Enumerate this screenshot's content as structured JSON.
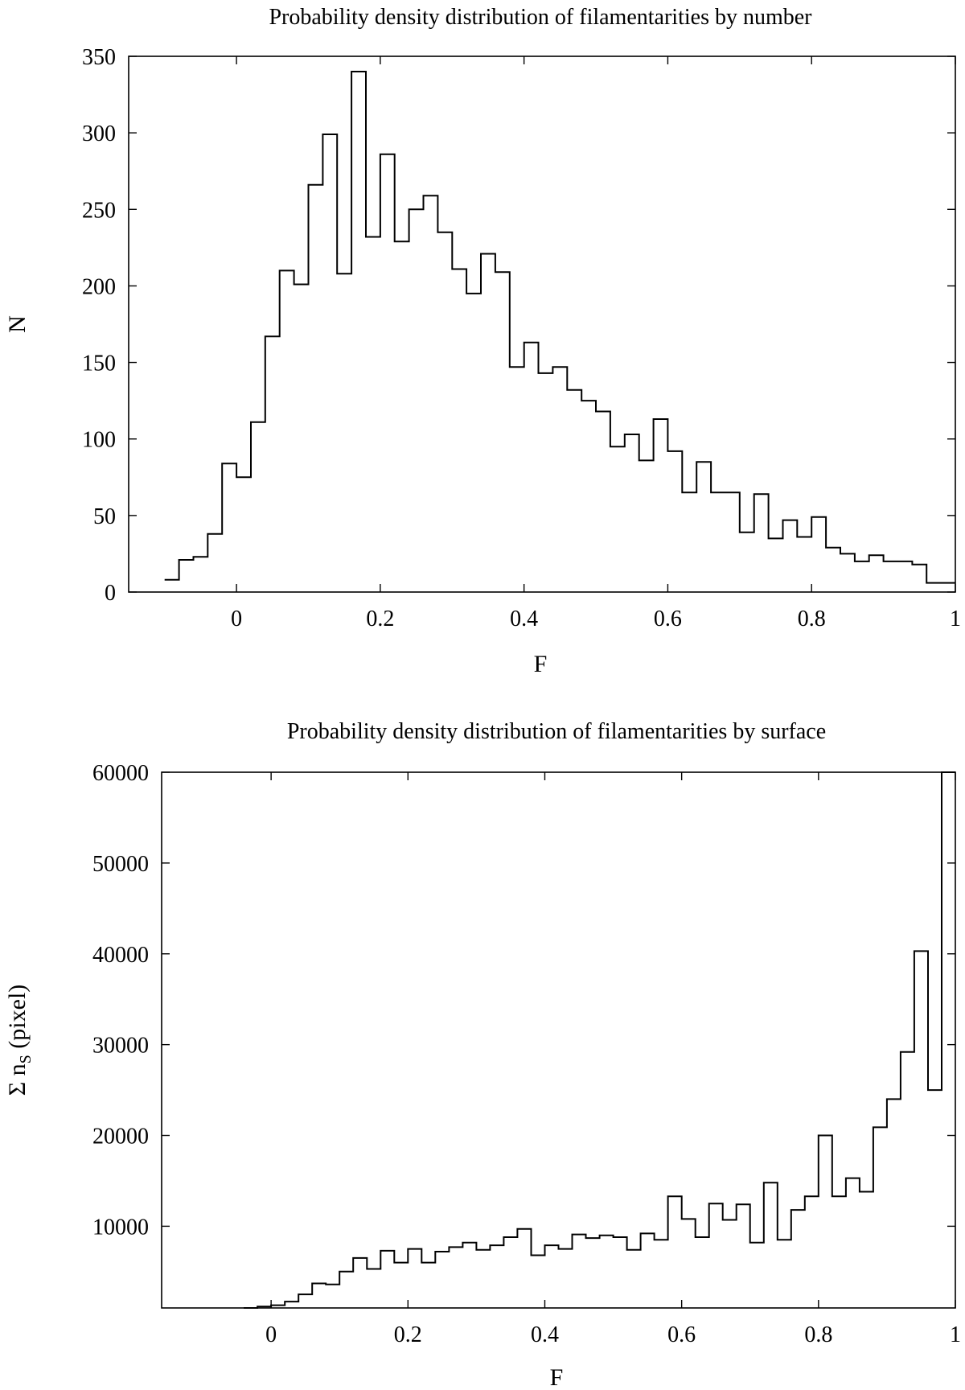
{
  "chart_data": [
    {
      "type": "histogram",
      "title": "Probability density distribution of filamentarities by number",
      "xlabel": "F",
      "ylabel": "N",
      "xlim": [
        -0.15,
        1.0
      ],
      "ylim": [
        0,
        350
      ],
      "x_ticks": [
        0,
        0.2,
        0.4,
        0.6,
        0.8,
        1
      ],
      "x_tick_labels": [
        "0",
        "0.2",
        "0.4",
        "0.6",
        "0.8",
        "1"
      ],
      "y_ticks": [
        0,
        50,
        100,
        150,
        200,
        250,
        300,
        350
      ],
      "y_tick_labels": [
        "0",
        "50",
        "100",
        "150",
        "200",
        "250",
        "300",
        "350"
      ],
      "bin_start": -0.1,
      "bin_width": 0.02,
      "values": [
        8,
        21,
        23,
        38,
        84,
        75,
        111,
        167,
        210,
        201,
        266,
        299,
        208,
        340,
        232,
        286,
        229,
        250,
        259,
        235,
        211,
        195,
        221,
        209,
        147,
        163,
        143,
        147,
        132,
        125,
        118,
        95,
        103,
        86,
        113,
        92,
        65,
        85,
        65,
        65,
        39,
        64,
        35,
        47,
        36,
        49,
        29,
        25,
        20,
        24,
        20,
        20,
        18,
        6,
        6
      ],
      "grid": false,
      "legend": "none"
    },
    {
      "type": "histogram",
      "title": "Probability density distribution of filamentarities by surface",
      "xlabel": "F",
      "ylabel_main": "Σ n",
      "ylabel_sub": "S",
      "ylabel_tail": " (pixel)",
      "xlim": [
        -0.16,
        1.0
      ],
      "ylim": [
        1000,
        60000
      ],
      "x_ticks": [
        0,
        0.2,
        0.4,
        0.6,
        0.8,
        1
      ],
      "x_tick_labels": [
        "0",
        "0.2",
        "0.4",
        "0.6",
        "0.8",
        "1"
      ],
      "y_ticks": [
        10000,
        20000,
        30000,
        40000,
        50000,
        60000
      ],
      "y_tick_labels": [
        "10000",
        "20000",
        "30000",
        "40000",
        "50000",
        "60000"
      ],
      "bin_start": -0.04,
      "bin_width": 0.02,
      "values": [
        1000,
        1150,
        1300,
        1700,
        2500,
        3700,
        3600,
        5000,
        6500,
        5300,
        7300,
        6000,
        7500,
        6000,
        7200,
        7700,
        8200,
        7400,
        7900,
        8800,
        9700,
        6800,
        7900,
        7500,
        9100,
        8700,
        9000,
        8800,
        7400,
        9200,
        8500,
        13300,
        10800,
        8800,
        12500,
        10700,
        12400,
        8200,
        14800,
        8500,
        11800,
        13300,
        20000,
        13300,
        15300,
        13800,
        20900,
        24000,
        29200,
        40300,
        25000,
        60000
      ],
      "grid": false,
      "legend": "none"
    }
  ]
}
